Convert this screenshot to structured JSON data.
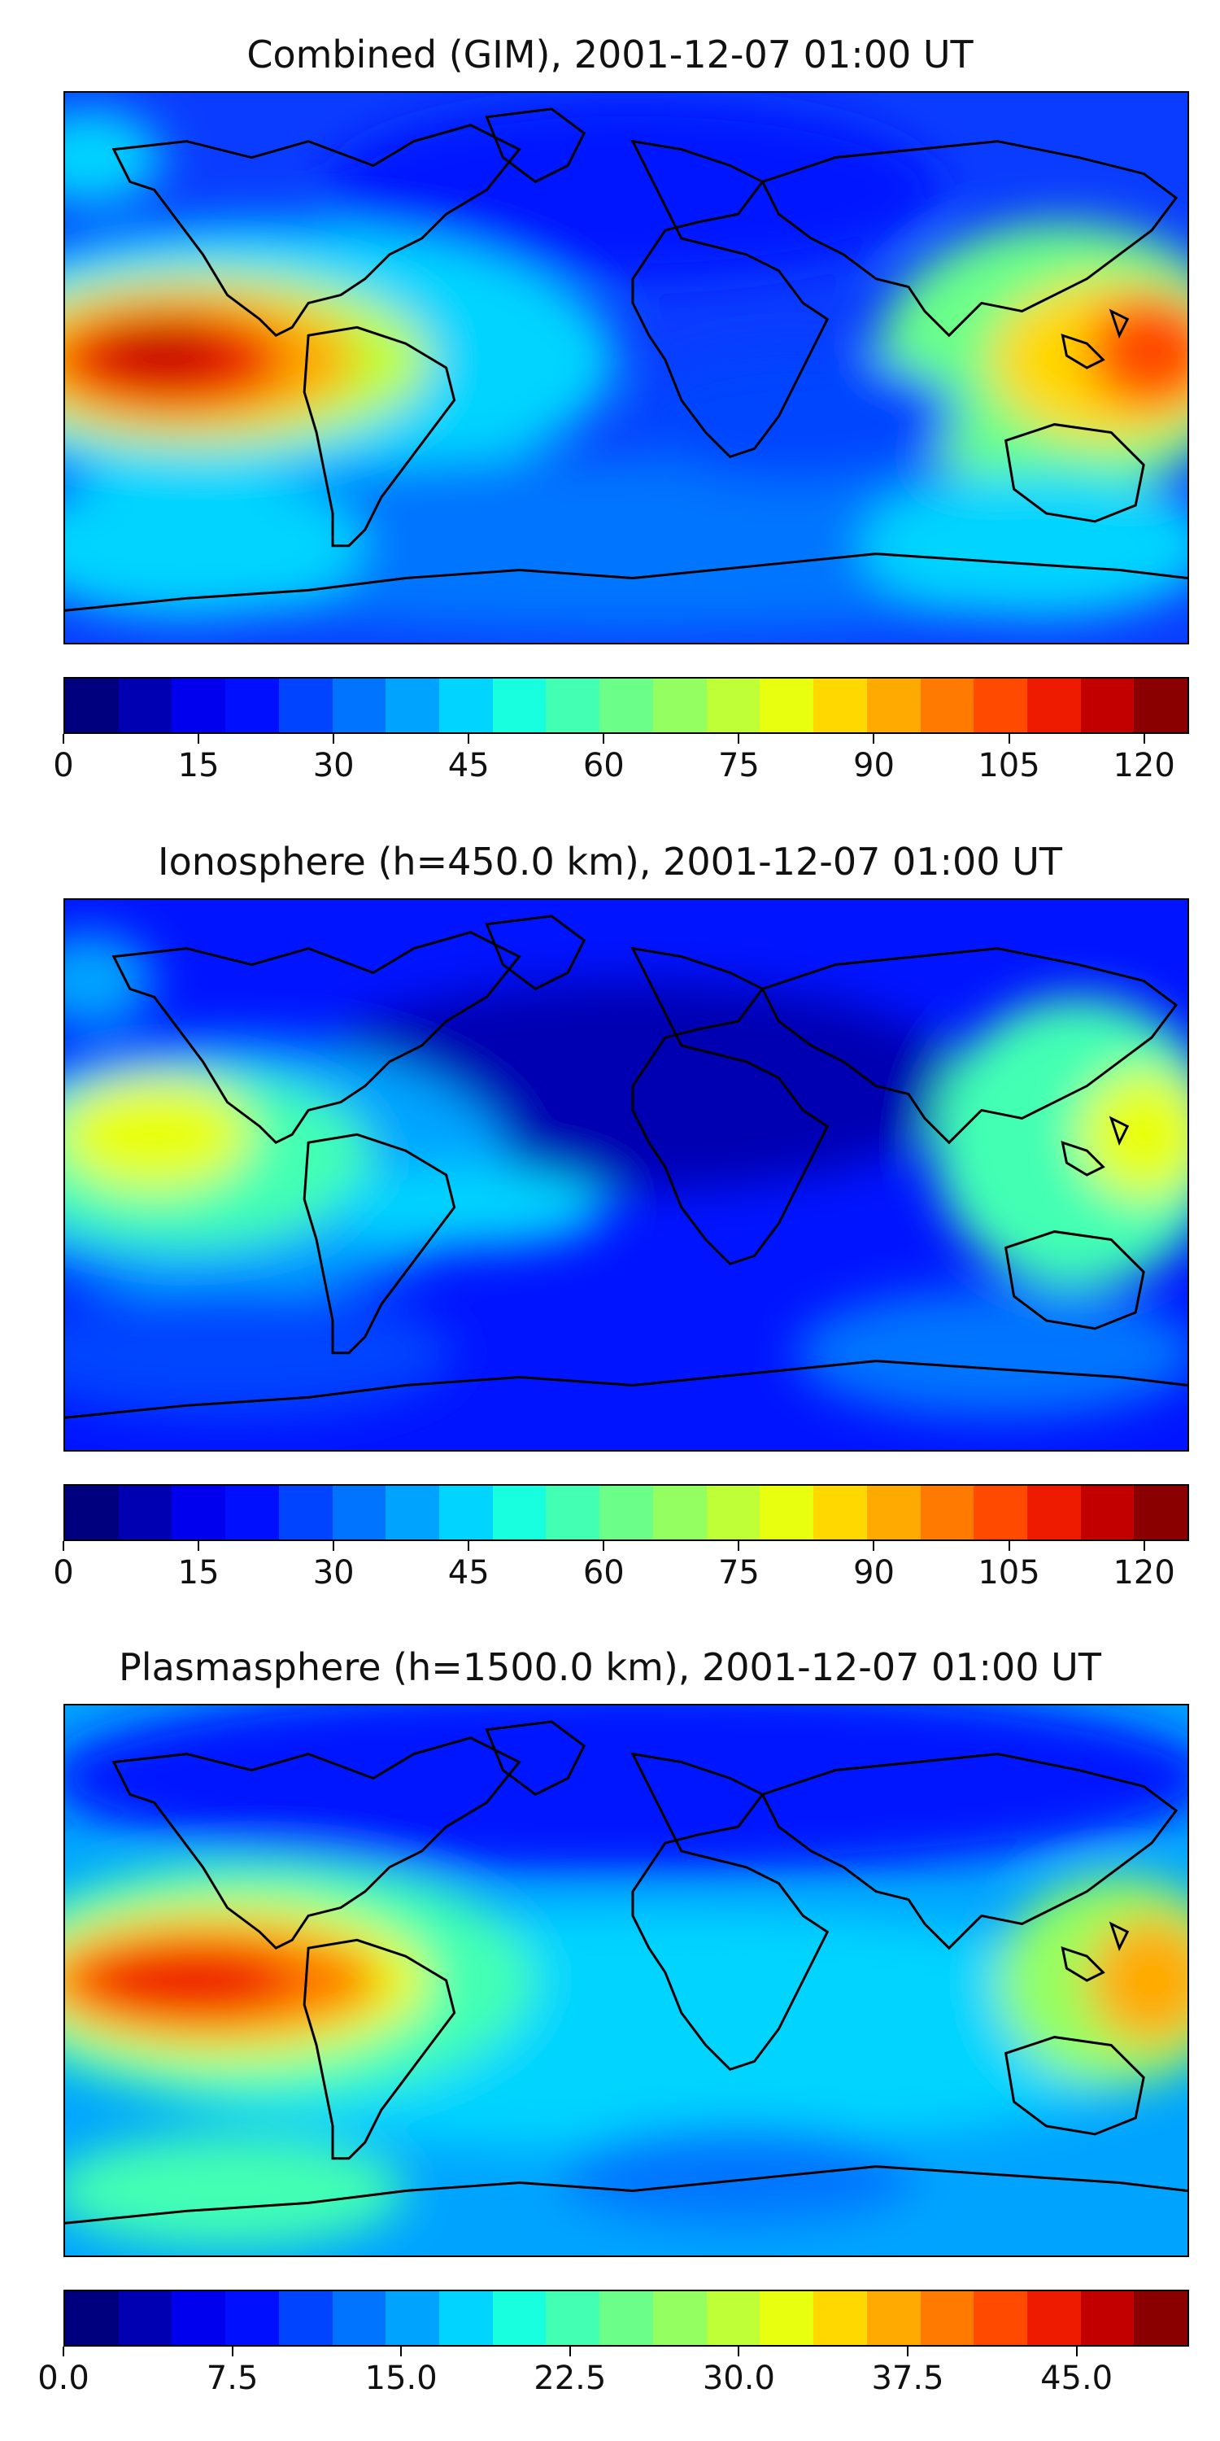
{
  "panels": [
    {
      "title": "Combined (GIM), 2001-12-07 01:00 UT",
      "colorbar": {
        "min": 0,
        "max": 125,
        "ticks": [
          "0",
          "15",
          "30",
          "45",
          "60",
          "75",
          "90",
          "105",
          "120"
        ],
        "tick_values": [
          0,
          15,
          30,
          45,
          60,
          75,
          90,
          105,
          120
        ]
      },
      "map_layer": "gim"
    },
    {
      "title": "Ionosphere  (h=450.0 km), 2001-12-07 01:00 UT",
      "colorbar": {
        "min": 0,
        "max": 125,
        "ticks": [
          "0",
          "15",
          "30",
          "45",
          "60",
          "75",
          "90",
          "105",
          "120"
        ],
        "tick_values": [
          0,
          15,
          30,
          45,
          60,
          75,
          90,
          105,
          120
        ]
      },
      "map_layer": "iono"
    },
    {
      "title": "Plasmasphere (h=1500.0 km), 2001-12-07 01:00 UT",
      "colorbar": {
        "min": 0,
        "max": 50,
        "ticks": [
          "0.0",
          "7.5",
          "15.0",
          "22.5",
          "30.0",
          "37.5",
          "45.0"
        ],
        "tick_values": [
          0,
          7.5,
          15,
          22.5,
          30,
          37.5,
          45
        ]
      },
      "map_layer": "plasma"
    }
  ],
  "colormap": [
    "#00007f",
    "#0000b2",
    "#0000ef",
    "#0010ff",
    "#0044ff",
    "#0074ff",
    "#00a4ff",
    "#00d4ff",
    "#17ffdf",
    "#42ffb4",
    "#6bff8a",
    "#94ff61",
    "#beff38",
    "#e8ff0f",
    "#ffd800",
    "#ffaa00",
    "#ff7a00",
    "#ff4a00",
    "#ef1b00",
    "#c20000",
    "#8a0000"
  ]
}
